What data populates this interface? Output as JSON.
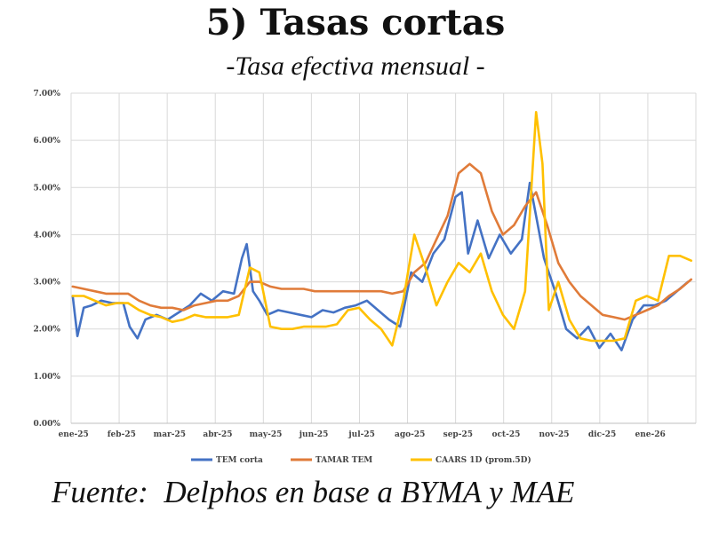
{
  "header": {
    "title": "5) Tasas cortas",
    "subtitle": "-Tasa efectiva mensual -"
  },
  "footer": {
    "source": "Fuente:  Delphos en base a BYMA y MAE"
  },
  "chart_data": {
    "type": "line",
    "title": "5) Tasas cortas",
    "subtitle": "-Tasa efectiva mensual -",
    "xlabel": "",
    "ylabel": "",
    "x_ticks": [
      "ene-25",
      "feb-25",
      "mar-25",
      "abr-25",
      "may-25",
      "jun-25",
      "jul-25",
      "ago-25",
      "sep-25",
      "oct-25",
      "nov-25",
      "dic-25",
      "ene-26"
    ],
    "y_ticks": [
      "0.00%",
      "1.00%",
      "2.00%",
      "3.00%",
      "4.00%",
      "5.00%",
      "6.00%",
      "7.00%"
    ],
    "ylim": [
      0,
      7
    ],
    "xlim": [
      "2025-01-01",
      "2026-01-31"
    ],
    "grid": true,
    "legend_position": "bottom",
    "series": [
      {
        "name": "TEM corta",
        "color": "#4472c4",
        "points": [
          [
            "2025-01-02",
            2.7
          ],
          [
            "2025-01-05",
            1.85
          ],
          [
            "2025-01-09",
            2.45
          ],
          [
            "2025-01-14",
            2.5
          ],
          [
            "2025-01-20",
            2.6
          ],
          [
            "2025-01-27",
            2.55
          ],
          [
            "2025-02-03",
            2.55
          ],
          [
            "2025-02-07",
            2.05
          ],
          [
            "2025-02-12",
            1.8
          ],
          [
            "2025-02-17",
            2.2
          ],
          [
            "2025-02-24",
            2.3
          ],
          [
            "2025-03-03",
            2.2
          ],
          [
            "2025-03-10",
            2.35
          ],
          [
            "2025-03-17",
            2.5
          ],
          [
            "2025-03-24",
            2.75
          ],
          [
            "2025-03-31",
            2.6
          ],
          [
            "2025-04-07",
            2.8
          ],
          [
            "2025-04-14",
            2.75
          ],
          [
            "2025-04-19",
            3.5
          ],
          [
            "2025-04-22",
            3.8
          ],
          [
            "2025-04-26",
            2.8
          ],
          [
            "2025-04-30",
            2.6
          ],
          [
            "2025-05-05",
            2.3
          ],
          [
            "2025-05-12",
            2.4
          ],
          [
            "2025-05-19",
            2.35
          ],
          [
            "2025-05-26",
            2.3
          ],
          [
            "2025-06-02",
            2.25
          ],
          [
            "2025-06-09",
            2.4
          ],
          [
            "2025-06-16",
            2.35
          ],
          [
            "2025-06-23",
            2.45
          ],
          [
            "2025-06-30",
            2.5
          ],
          [
            "2025-07-07",
            2.6
          ],
          [
            "2025-07-14",
            2.4
          ],
          [
            "2025-07-21",
            2.2
          ],
          [
            "2025-07-28",
            2.05
          ],
          [
            "2025-08-04",
            3.2
          ],
          [
            "2025-08-11",
            3.0
          ],
          [
            "2025-08-18",
            3.6
          ],
          [
            "2025-08-25",
            3.9
          ],
          [
            "2025-09-01",
            4.8
          ],
          [
            "2025-09-05",
            4.9
          ],
          [
            "2025-09-09",
            3.6
          ],
          [
            "2025-09-15",
            4.3
          ],
          [
            "2025-09-22",
            3.5
          ],
          [
            "2025-09-29",
            4.0
          ],
          [
            "2025-10-06",
            3.6
          ],
          [
            "2025-10-13",
            3.9
          ],
          [
            "2025-10-18",
            5.1
          ],
          [
            "2025-10-22",
            4.4
          ],
          [
            "2025-10-27",
            3.5
          ],
          [
            "2025-11-03",
            2.8
          ],
          [
            "2025-11-10",
            2.0
          ],
          [
            "2025-11-17",
            1.8
          ],
          [
            "2025-11-24",
            2.05
          ],
          [
            "2025-12-01",
            1.6
          ],
          [
            "2025-12-08",
            1.9
          ],
          [
            "2025-12-15",
            1.55
          ],
          [
            "2025-12-22",
            2.2
          ],
          [
            "2025-12-29",
            2.5
          ],
          [
            "2026-01-05",
            2.5
          ],
          [
            "2026-01-12",
            2.6
          ],
          [
            "2026-01-19",
            2.8
          ],
          [
            "2026-01-26",
            3.0
          ]
        ]
      },
      {
        "name": "TAMAR TEM",
        "color": "#e07b39",
        "points": [
          [
            "2025-01-02",
            2.9
          ],
          [
            "2025-01-09",
            2.85
          ],
          [
            "2025-01-16",
            2.8
          ],
          [
            "2025-01-23",
            2.75
          ],
          [
            "2025-01-30",
            2.75
          ],
          [
            "2025-02-06",
            2.75
          ],
          [
            "2025-02-13",
            2.6
          ],
          [
            "2025-02-20",
            2.5
          ],
          [
            "2025-02-27",
            2.45
          ],
          [
            "2025-03-06",
            2.45
          ],
          [
            "2025-03-13",
            2.4
          ],
          [
            "2025-03-20",
            2.5
          ],
          [
            "2025-03-27",
            2.55
          ],
          [
            "2025-04-03",
            2.6
          ],
          [
            "2025-04-10",
            2.6
          ],
          [
            "2025-04-17",
            2.7
          ],
          [
            "2025-04-24",
            3.0
          ],
          [
            "2025-04-30",
            3.0
          ],
          [
            "2025-05-07",
            2.9
          ],
          [
            "2025-05-14",
            2.85
          ],
          [
            "2025-05-21",
            2.85
          ],
          [
            "2025-05-28",
            2.85
          ],
          [
            "2025-06-04",
            2.8
          ],
          [
            "2025-06-11",
            2.8
          ],
          [
            "2025-06-18",
            2.8
          ],
          [
            "2025-06-25",
            2.8
          ],
          [
            "2025-07-02",
            2.8
          ],
          [
            "2025-07-09",
            2.8
          ],
          [
            "2025-07-16",
            2.8
          ],
          [
            "2025-07-23",
            2.75
          ],
          [
            "2025-07-30",
            2.8
          ],
          [
            "2025-08-06",
            3.2
          ],
          [
            "2025-08-13",
            3.4
          ],
          [
            "2025-08-20",
            3.9
          ],
          [
            "2025-08-27",
            4.4
          ],
          [
            "2025-09-03",
            5.3
          ],
          [
            "2025-09-10",
            5.5
          ],
          [
            "2025-09-17",
            5.3
          ],
          [
            "2025-09-24",
            4.5
          ],
          [
            "2025-10-01",
            4.0
          ],
          [
            "2025-10-08",
            4.2
          ],
          [
            "2025-10-15",
            4.6
          ],
          [
            "2025-10-22",
            4.9
          ],
          [
            "2025-10-29",
            4.2
          ],
          [
            "2025-11-05",
            3.4
          ],
          [
            "2025-11-12",
            3.0
          ],
          [
            "2025-11-19",
            2.7
          ],
          [
            "2025-11-26",
            2.5
          ],
          [
            "2025-12-03",
            2.3
          ],
          [
            "2025-12-10",
            2.25
          ],
          [
            "2025-12-17",
            2.2
          ],
          [
            "2025-12-24",
            2.3
          ],
          [
            "2025-12-31",
            2.4
          ],
          [
            "2026-01-07",
            2.5
          ],
          [
            "2026-01-14",
            2.7
          ],
          [
            "2026-01-21",
            2.85
          ],
          [
            "2026-01-28",
            3.05
          ]
        ]
      },
      {
        "name": "CAARS 1D (prom.5D)",
        "color": "#ffc000",
        "points": [
          [
            "2025-01-02",
            2.7
          ],
          [
            "2025-01-09",
            2.7
          ],
          [
            "2025-01-16",
            2.6
          ],
          [
            "2025-01-23",
            2.5
          ],
          [
            "2025-01-30",
            2.55
          ],
          [
            "2025-02-06",
            2.55
          ],
          [
            "2025-02-13",
            2.4
          ],
          [
            "2025-02-20",
            2.3
          ],
          [
            "2025-02-27",
            2.25
          ],
          [
            "2025-03-06",
            2.15
          ],
          [
            "2025-03-13",
            2.2
          ],
          [
            "2025-03-20",
            2.3
          ],
          [
            "2025-03-27",
            2.25
          ],
          [
            "2025-04-03",
            2.25
          ],
          [
            "2025-04-10",
            2.25
          ],
          [
            "2025-04-17",
            2.3
          ],
          [
            "2025-04-24",
            3.3
          ],
          [
            "2025-04-30",
            3.2
          ],
          [
            "2025-05-07",
            2.05
          ],
          [
            "2025-05-14",
            2.0
          ],
          [
            "2025-05-21",
            2.0
          ],
          [
            "2025-05-28",
            2.05
          ],
          [
            "2025-06-04",
            2.05
          ],
          [
            "2025-06-11",
            2.05
          ],
          [
            "2025-06-18",
            2.1
          ],
          [
            "2025-06-25",
            2.4
          ],
          [
            "2025-07-02",
            2.45
          ],
          [
            "2025-07-09",
            2.2
          ],
          [
            "2025-07-16",
            2.0
          ],
          [
            "2025-07-23",
            1.65
          ],
          [
            "2025-07-30",
            2.6
          ],
          [
            "2025-08-06",
            4.0
          ],
          [
            "2025-08-13",
            3.3
          ],
          [
            "2025-08-20",
            2.5
          ],
          [
            "2025-08-27",
            3.0
          ],
          [
            "2025-09-03",
            3.4
          ],
          [
            "2025-09-10",
            3.2
          ],
          [
            "2025-09-17",
            3.6
          ],
          [
            "2025-09-24",
            2.8
          ],
          [
            "2025-10-01",
            2.3
          ],
          [
            "2025-10-08",
            2.0
          ],
          [
            "2025-10-15",
            2.8
          ],
          [
            "2025-10-22",
            6.6
          ],
          [
            "2025-10-26",
            5.5
          ],
          [
            "2025-10-30",
            2.4
          ],
          [
            "2025-11-05",
            3.0
          ],
          [
            "2025-11-12",
            2.2
          ],
          [
            "2025-11-19",
            1.8
          ],
          [
            "2025-11-26",
            1.75
          ],
          [
            "2025-12-03",
            1.75
          ],
          [
            "2025-12-10",
            1.75
          ],
          [
            "2025-12-17",
            1.8
          ],
          [
            "2025-12-24",
            2.6
          ],
          [
            "2025-12-31",
            2.7
          ],
          [
            "2026-01-07",
            2.6
          ],
          [
            "2026-01-14",
            3.55
          ],
          [
            "2026-01-21",
            3.55
          ],
          [
            "2026-01-28",
            3.45
          ]
        ]
      }
    ]
  }
}
